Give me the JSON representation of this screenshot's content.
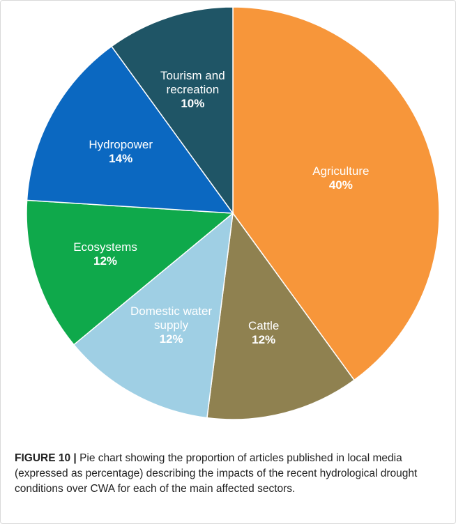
{
  "chart_data": {
    "type": "pie",
    "categories": [
      "Agriculture",
      "Cattle",
      "Domestic water supply",
      "Ecosystems",
      "Hydropower",
      "Tourism and recreation"
    ],
    "values": [
      40,
      12,
      12,
      12,
      14,
      10
    ],
    "value_labels": [
      "40%",
      "12%",
      "12%",
      "12%",
      "14%",
      "10%"
    ],
    "colors": [
      "#f7963a",
      "#8f8150",
      "#9fcfe4",
      "#0fa94b",
      "#0b68c1",
      "#1f5566"
    ]
  },
  "caption": {
    "label": "FIGURE 10 |",
    "text": "Pie chart showing the proportion of articles published in local media (expressed as percentage) describing the impacts of the recent hydrological drought conditions over CWA for each of the main affected sectors."
  }
}
